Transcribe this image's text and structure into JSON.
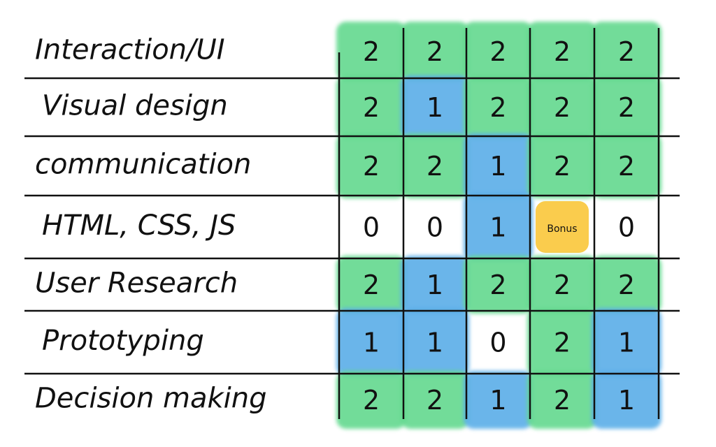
{
  "table": {
    "rows": [
      {
        "label": "Interaction/UI",
        "cells": [
          "2",
          "2",
          "2",
          "2",
          "2"
        ],
        "colors": [
          "#63d98f",
          "#63d98f",
          "#63d98f",
          "#63d98f",
          "#63d98f"
        ]
      },
      {
        "label": "Visual design",
        "cells": [
          "2",
          "1",
          "2",
          "2",
          "2"
        ],
        "colors": [
          "#63d98f",
          "#5aaee8",
          "#63d98f",
          "#63d98f",
          "#63d98f"
        ]
      },
      {
        "label": "communication",
        "cells": [
          "2",
          "2",
          "1",
          "2",
          "2"
        ],
        "colors": [
          "#63d98f",
          "#63d98f",
          "#5aaee8",
          "#63d98f",
          "#63d98f"
        ]
      },
      {
        "label": "HTML, CSS, JS",
        "cells": [
          "0",
          "0",
          "1",
          "Bonus",
          "0"
        ],
        "colors": [
          "#ffffff",
          "#ffffff",
          "#5aaee8",
          "#f9c63a",
          "#ffffff"
        ]
      },
      {
        "label": "User Research",
        "cells": [
          "2",
          "1",
          "2",
          "2",
          "2"
        ],
        "colors": [
          "#63d98f",
          "#5aaee8",
          "#63d98f",
          "#63d98f",
          "#63d98f"
        ]
      },
      {
        "label": "Prototyping",
        "cells": [
          "1",
          "1",
          "0",
          "2",
          "1"
        ],
        "colors": [
          "#5aaee8",
          "#5aaee8",
          "#ffffff",
          "#63d98f",
          "#5aaee8"
        ]
      },
      {
        "label": "Decision making",
        "cells": [
          "2",
          "2",
          "1",
          "2",
          "1"
        ],
        "colors": [
          "#63d98f",
          "#63d98f",
          "#5aaee8",
          "#63d98f",
          "#5aaee8"
        ]
      }
    ]
  }
}
